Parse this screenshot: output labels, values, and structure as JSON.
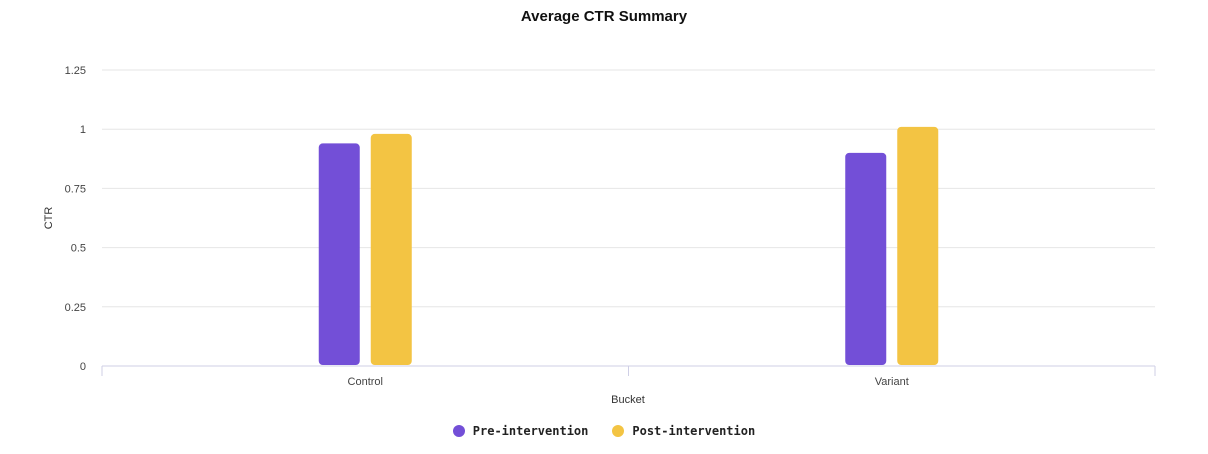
{
  "chart_data": {
    "type": "bar",
    "title": "Average CTR Summary",
    "xlabel": "Bucket",
    "ylabel": "CTR",
    "categories": [
      "Control",
      "Variant"
    ],
    "ylim": [
      0,
      1.25
    ],
    "yticks": [
      0,
      0.25,
      0.5,
      0.75,
      1,
      1.25
    ],
    "ytick_labels": [
      "0",
      "0.25",
      "0.5",
      "0.75",
      "1",
      "1.25"
    ],
    "grid": true,
    "legend_position": "bottom-center",
    "series": [
      {
        "name": "Pre-intervention",
        "color": "#734fd7",
        "values": [
          0.94,
          0.9
        ]
      },
      {
        "name": "Post-intervention",
        "color": "#f3c443",
        "values": [
          0.98,
          1.01
        ]
      }
    ]
  }
}
